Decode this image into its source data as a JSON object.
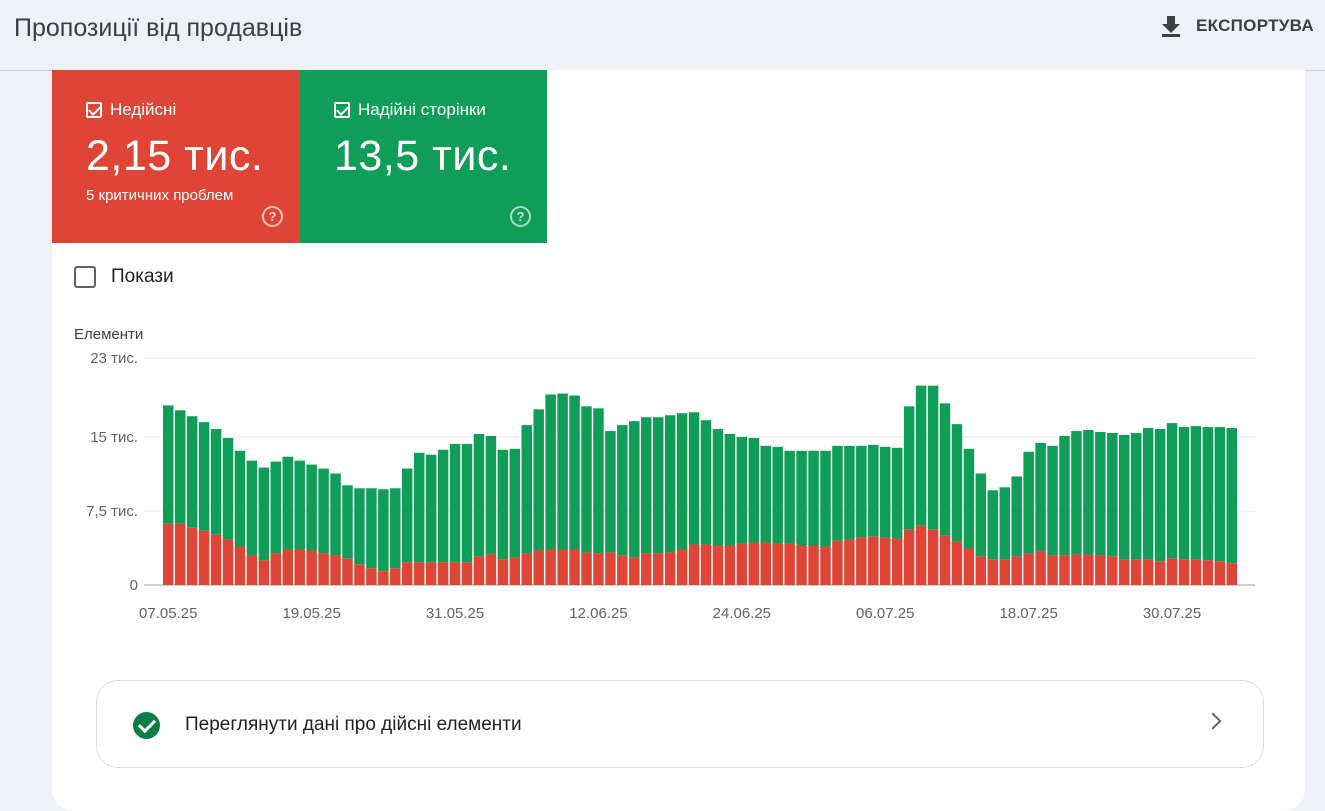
{
  "header": {
    "title": "Пропозиції від продавців",
    "export_label": "ЕКСПОРТУВА"
  },
  "tiles": {
    "invalid": {
      "label": "Недійсні",
      "value": "2,15 тис.",
      "sub": "5 критичних проблем",
      "color": "#de4536"
    },
    "valid": {
      "label": "Надійні сторінки",
      "value": "13,5 тис.",
      "color": "#0f9d58"
    }
  },
  "show_toggle": {
    "label": "Покази"
  },
  "chart_data": {
    "type": "bar",
    "stacked": true,
    "ylabel": "Елементи",
    "ylim": [
      0,
      23000
    ],
    "yticks": [
      "0",
      "7,5 тис.",
      "15 тис.",
      "23 тис."
    ],
    "ytick_values": [
      0,
      7500,
      15000,
      23000
    ],
    "xtick_labels": [
      "07.05.25",
      "19.05.25",
      "31.05.25",
      "12.06.25",
      "24.06.25",
      "06.07.25",
      "18.07.25",
      "30.07.25"
    ],
    "grid": true,
    "series": [
      {
        "color": "#de4536",
        "values": [
          6200,
          6200,
          5800,
          5500,
          5100,
          4600,
          3900,
          3000,
          2500,
          3200,
          3600,
          3600,
          3500,
          3200,
          3000,
          2700,
          2100,
          1700,
          1400,
          1700,
          2300,
          2300,
          2300,
          2300,
          2300,
          2300,
          2900,
          3100,
          2600,
          2800,
          3200,
          3500,
          3600,
          3600,
          3600,
          3300,
          3200,
          3300,
          3000,
          2800,
          3200,
          3200,
          3300,
          3600,
          4100,
          4100,
          4000,
          4000,
          4200,
          4300,
          4300,
          4200,
          4200,
          4000,
          4000,
          3900,
          4500,
          4600,
          4800,
          4900,
          4800,
          4700,
          5600,
          6000,
          5600,
          5000,
          4400,
          3700,
          2900,
          2600,
          2600,
          2900,
          3200,
          3400,
          3000,
          3000,
          3100,
          3100,
          3000,
          2900,
          2600,
          2600,
          2600,
          2400,
          2700,
          2600,
          2600,
          2500,
          2400,
          2200
        ]
      },
      {
        "color": "#0f9d58",
        "values": [
          12000,
          11500,
          11300,
          11000,
          10700,
          10300,
          9700,
          9600,
          9400,
          9300,
          9400,
          9000,
          8700,
          8600,
          8300,
          7400,
          7700,
          8100,
          8300,
          8100,
          9500,
          11100,
          10900,
          11400,
          12000,
          12000,
          12400,
          12000,
          11100,
          11000,
          13000,
          14300,
          15700,
          15800,
          15600,
          14800,
          14700,
          12300,
          13200,
          13800,
          13800,
          13800,
          13900,
          13800,
          13400,
          12600,
          11800,
          11300,
          10800,
          10600,
          9800,
          9800,
          9400,
          9600,
          9600,
          9700,
          9600,
          9500,
          9300,
          9300,
          9200,
          9200,
          12500,
          14200,
          14600,
          13400,
          11900,
          10100,
          8400,
          7000,
          7300,
          8100,
          10300,
          11000,
          11100,
          12100,
          12500,
          12600,
          12500,
          12500,
          12600,
          12800,
          13300,
          13400,
          13700,
          13400,
          13500,
          13500,
          13600,
          13700
        ]
      }
    ]
  },
  "nav_row": {
    "label": "Переглянути дані про дійсні елементи"
  }
}
